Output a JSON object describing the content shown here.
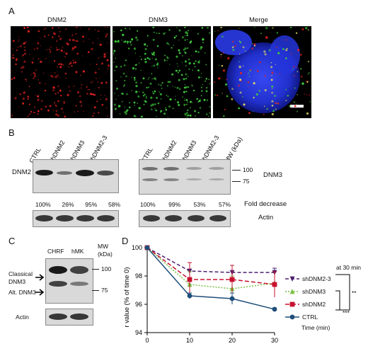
{
  "panels": {
    "a": "A",
    "b": "B",
    "c": "C",
    "d": "D"
  },
  "panel_a": {
    "titles": [
      "DNM2",
      "DNM3",
      "Merge"
    ],
    "colors": {
      "dnm2": "#e02020",
      "dnm3": "#40d040",
      "nucleus": "#2030e0"
    }
  },
  "panel_b": {
    "lanes": [
      "CTRL",
      "shDNM2",
      "shDNM3",
      "shDNM2-3"
    ],
    "left_label": "DNM2",
    "left_percents": [
      "100%",
      "26%",
      "95%",
      "58%"
    ],
    "right_percents": [
      "100%",
      "99%",
      "53%",
      "57%"
    ],
    "mw_header": "MW (kDa)",
    "mw_marks": [
      "100",
      "75"
    ],
    "right_label": "DNM3",
    "fold_label": "Fold decrease",
    "actin_label": "Actin"
  },
  "panel_c": {
    "lanes": [
      "CHRF",
      "hMK"
    ],
    "mw_header": "MW\n(kDa)",
    "mw_marks": [
      "100",
      "75"
    ],
    "classical": "Classical\nDNM3",
    "alt": "Alt. DNM3",
    "actin_label": "Actin"
  },
  "chart_data": {
    "type": "line",
    "ylabel": "r value (% of time 0)",
    "xlabel": "Time (min)",
    "x": [
      0,
      10,
      20,
      30
    ],
    "ylim": [
      94,
      100
    ],
    "xticks": [
      "0",
      "10",
      "20",
      "30"
    ],
    "yticks": [
      "94",
      "96",
      "98",
      "100"
    ],
    "series": [
      {
        "name": "shDNM2-3",
        "values": [
          100,
          98.35,
          98.25,
          98.25
        ],
        "errors": [
          0,
          0.6,
          0.5,
          0.3
        ],
        "color": "#4b1e6e",
        "dash": "5,3",
        "marker": "triangle-down"
      },
      {
        "name": "shDNM3",
        "values": [
          100,
          97.4,
          97.1,
          97.5
        ],
        "errors": [
          0,
          0.9,
          0.9,
          0.8
        ],
        "color": "#7ac142",
        "dash": "2,2",
        "marker": "triangle-up"
      },
      {
        "name": "shDNM2",
        "values": [
          100,
          97.75,
          97.75,
          97.4
        ],
        "errors": [
          0,
          1.2,
          1.0,
          0.9
        ],
        "color": "#c8102e",
        "dash": "6,3",
        "marker": "square"
      },
      {
        "name": "CTRL",
        "values": [
          100,
          96.6,
          96.4,
          95.65
        ],
        "errors": [
          0,
          0.2,
          0.4,
          0.1
        ],
        "color": "#1f4e79",
        "dash": "",
        "marker": "circle"
      }
    ],
    "annotations": {
      "header": "at 30 min",
      "sig1": "***",
      "sig2": "**"
    }
  }
}
